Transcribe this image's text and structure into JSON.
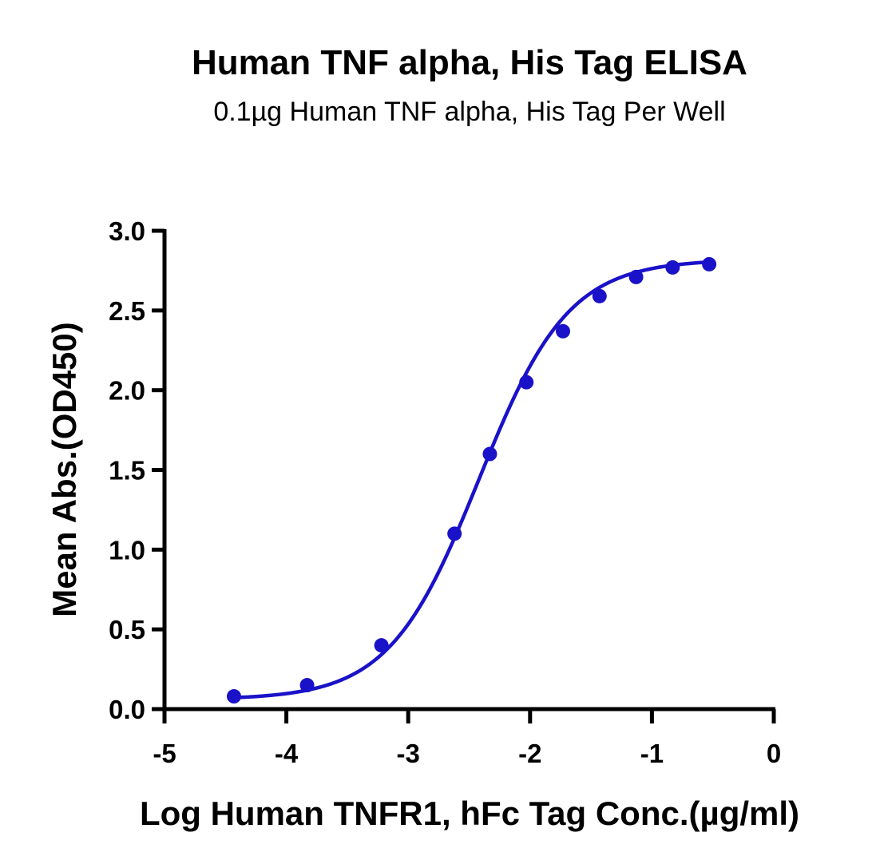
{
  "chart_data": {
    "type": "scatter",
    "title": "Human TNF alpha, His Tag ELISA",
    "subtitle": "0.1µg Human TNF alpha, His Tag Per Well",
    "xlabel": "Log Human TNFR1, hFc Tag Conc.(µg/ml)",
    "ylabel": "Mean Abs.(OD450)",
    "xlim": [
      -5,
      0
    ],
    "ylim": [
      0,
      3.0
    ],
    "x_ticks": [
      "-5",
      "-4",
      "-3",
      "-2",
      "-1",
      "0"
    ],
    "y_ticks": [
      "0.0",
      "0.5",
      "1.0",
      "1.5",
      "2.0",
      "2.5",
      "3.0"
    ],
    "grid": false,
    "fit": "four-parameter logistic curve",
    "series_color": "#1a12c8",
    "series": [
      {
        "x": [
          -4.43,
          -3.83,
          -3.22,
          -2.62,
          -2.33,
          -2.03,
          -1.73,
          -1.43,
          -1.13,
          -0.83,
          -0.53
        ],
        "y": [
          0.08,
          0.15,
          0.4,
          1.1,
          1.6,
          2.05,
          2.37,
          2.59,
          2.71,
          2.77,
          2.79
        ]
      }
    ]
  }
}
